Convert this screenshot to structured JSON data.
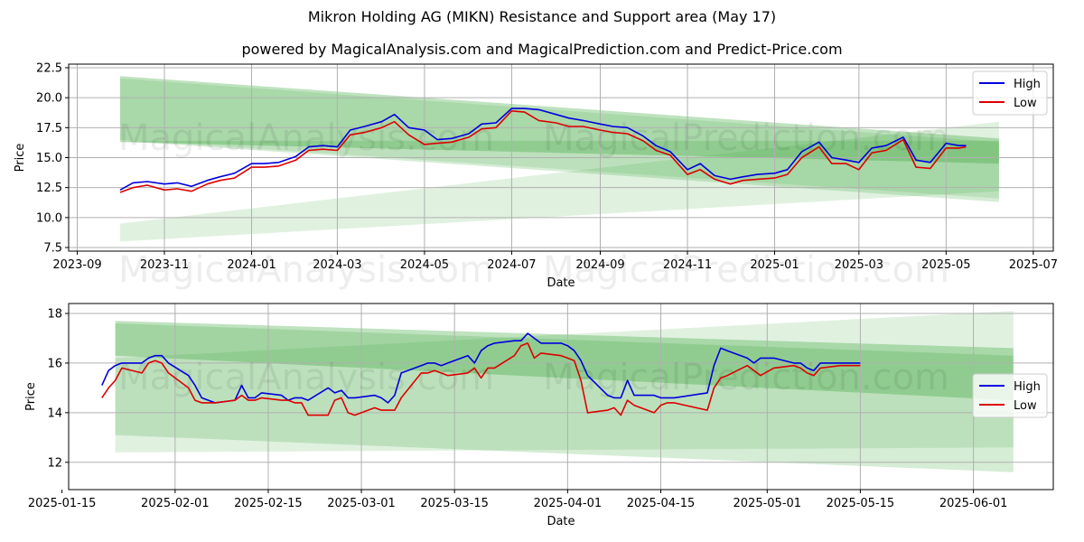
{
  "title": "Mikron Holding AG (MIKN) Resistance and Support area (May 17)",
  "subtitle": "powered by MagicalAnalysis.com and MagicalPrediction.com and Predict-Price.com",
  "watermarks": [
    "MagicalAnalysis.com",
    "MagicalPrediction.com"
  ],
  "colors": {
    "high": "#0000dd",
    "low": "#dd0000",
    "band": "#2ca02c",
    "grid": "#b0b0b0"
  },
  "chart_data": [
    {
      "type": "line",
      "xlabel": "Date",
      "ylabel": "Price",
      "grid": true,
      "legend_position": "top-right",
      "xlim": [
        "2023-08-26",
        "2025-07-15"
      ],
      "ylim": [
        7.2,
        22.8
      ],
      "x_ticks": [
        "2023-09",
        "2023-11",
        "2024-01",
        "2024-03",
        "2024-05",
        "2024-07",
        "2024-09",
        "2024-11",
        "2025-01",
        "2025-03",
        "2025-05",
        "2025-07"
      ],
      "y_ticks": [
        "7.5",
        "10.0",
        "12.5",
        "15.0",
        "17.5",
        "20.0",
        "22.5"
      ],
      "bands": [
        {
          "x": [
            "2023-10-01",
            "2025-06-07"
          ],
          "upper": [
            21.8,
            16.6
          ],
          "lower": [
            16.3,
            14.5
          ],
          "opacity": 0.3
        },
        {
          "x": [
            "2023-10-01",
            "2025-06-07"
          ],
          "upper": [
            21.6,
            16.3
          ],
          "lower": [
            16.5,
            11.6
          ],
          "opacity": 0.15
        },
        {
          "x": [
            "2023-10-01",
            "2025-06-07"
          ],
          "upper": [
            9.5,
            18.0
          ],
          "lower": [
            8.0,
            12.2
          ],
          "opacity": 0.15
        },
        {
          "x": [
            "2023-10-01",
            "2025-06-07"
          ],
          "upper": [
            16.4,
            16.4
          ],
          "lower": [
            16.4,
            11.3
          ],
          "opacity": 0.2
        }
      ],
      "series": [
        {
          "name": "High",
          "x": [
            "2023-10-01",
            "2023-10-10",
            "2023-10-20",
            "2023-11-01",
            "2023-11-10",
            "2023-11-20",
            "2023-12-01",
            "2023-12-10",
            "2023-12-20",
            "2024-01-01",
            "2024-01-10",
            "2024-01-20",
            "2024-02-01",
            "2024-02-10",
            "2024-02-20",
            "2024-03-01",
            "2024-03-10",
            "2024-03-20",
            "2024-04-01",
            "2024-04-10",
            "2024-04-20",
            "2024-05-01",
            "2024-05-10",
            "2024-05-20",
            "2024-06-01",
            "2024-06-10",
            "2024-06-20",
            "2024-07-01",
            "2024-07-10",
            "2024-07-20",
            "2024-08-01",
            "2024-08-10",
            "2024-08-20",
            "2024-09-01",
            "2024-09-10",
            "2024-09-20",
            "2024-10-01",
            "2024-10-10",
            "2024-10-20",
            "2024-11-01",
            "2024-11-10",
            "2024-11-20",
            "2024-12-01",
            "2024-12-10",
            "2024-12-20",
            "2025-01-01",
            "2025-01-10",
            "2025-01-20",
            "2025-02-01",
            "2025-02-10",
            "2025-02-20",
            "2025-03-01",
            "2025-03-10",
            "2025-03-20",
            "2025-04-01",
            "2025-04-10",
            "2025-04-20",
            "2025-05-01",
            "2025-05-10",
            "2025-05-15"
          ],
          "values": [
            12.3,
            12.9,
            13.0,
            12.8,
            12.9,
            12.6,
            13.1,
            13.4,
            13.7,
            14.5,
            14.5,
            14.6,
            15.1,
            15.9,
            16.0,
            15.9,
            17.3,
            17.6,
            18.0,
            18.6,
            17.5,
            17.3,
            16.5,
            16.6,
            17.0,
            17.8,
            17.9,
            19.1,
            19.1,
            19.0,
            18.6,
            18.3,
            18.1,
            17.8,
            17.6,
            17.5,
            16.8,
            16.0,
            15.5,
            14.0,
            14.5,
            13.5,
            13.2,
            13.4,
            13.6,
            13.7,
            14.0,
            15.5,
            16.3,
            15.0,
            14.8,
            14.6,
            15.8,
            16.0,
            16.7,
            14.8,
            14.6,
            16.2,
            16.0,
            16.0
          ]
        },
        {
          "name": "Low",
          "x": [
            "2023-10-01",
            "2023-10-10",
            "2023-10-20",
            "2023-11-01",
            "2023-11-10",
            "2023-11-20",
            "2023-12-01",
            "2023-12-10",
            "2023-12-20",
            "2024-01-01",
            "2024-01-10",
            "2024-01-20",
            "2024-02-01",
            "2024-02-10",
            "2024-02-20",
            "2024-03-01",
            "2024-03-10",
            "2024-03-20",
            "2024-04-01",
            "2024-04-10",
            "2024-04-20",
            "2024-05-01",
            "2024-05-10",
            "2024-05-20",
            "2024-06-01",
            "2024-06-10",
            "2024-06-20",
            "2024-07-01",
            "2024-07-10",
            "2024-07-20",
            "2024-08-01",
            "2024-08-10",
            "2024-08-20",
            "2024-09-01",
            "2024-09-10",
            "2024-09-20",
            "2024-10-01",
            "2024-10-10",
            "2024-10-20",
            "2024-11-01",
            "2024-11-10",
            "2024-11-20",
            "2024-12-01",
            "2024-12-10",
            "2024-12-20",
            "2025-01-01",
            "2025-01-10",
            "2025-01-20",
            "2025-02-01",
            "2025-02-10",
            "2025-02-20",
            "2025-03-01",
            "2025-03-10",
            "2025-03-20",
            "2025-04-01",
            "2025-04-10",
            "2025-04-20",
            "2025-05-01",
            "2025-05-10",
            "2025-05-15"
          ],
          "values": [
            12.1,
            12.5,
            12.7,
            12.3,
            12.4,
            12.2,
            12.8,
            13.1,
            13.3,
            14.2,
            14.2,
            14.3,
            14.8,
            15.6,
            15.7,
            15.6,
            16.9,
            17.1,
            17.5,
            18.0,
            16.9,
            16.1,
            16.2,
            16.3,
            16.7,
            17.4,
            17.5,
            18.9,
            18.8,
            18.1,
            17.9,
            17.6,
            17.6,
            17.3,
            17.1,
            17.0,
            16.4,
            15.6,
            15.2,
            13.6,
            14.0,
            13.2,
            12.8,
            13.1,
            13.2,
            13.3,
            13.6,
            15.0,
            15.9,
            14.5,
            14.5,
            14.0,
            15.4,
            15.6,
            16.5,
            14.2,
            14.1,
            15.8,
            15.8,
            15.9
          ]
        }
      ]
    },
    {
      "type": "line",
      "xlabel": "Date",
      "ylabel": "Price",
      "grid": true,
      "legend_position": "center-right",
      "xlim": [
        "2025-01-16",
        "2025-06-13"
      ],
      "ylim": [
        10.9,
        18.4
      ],
      "x_ticks": [
        "2025-01-15",
        "2025-02-01",
        "2025-02-15",
        "2025-03-01",
        "2025-03-15",
        "2025-04-01",
        "2025-04-15",
        "2025-05-01",
        "2025-05-15",
        "2025-06-01"
      ],
      "y_ticks": [
        "12",
        "14",
        "16",
        "18"
      ],
      "bands": [
        {
          "x": [
            "2025-01-23",
            "2025-06-07"
          ],
          "upper": [
            17.7,
            16.6
          ],
          "lower": [
            16.3,
            14.5
          ],
          "opacity": 0.3
        },
        {
          "x": [
            "2025-01-23",
            "2025-06-07"
          ],
          "upper": [
            17.6,
            16.3
          ],
          "lower": [
            13.1,
            11.6
          ],
          "opacity": 0.2
        },
        {
          "x": [
            "2025-01-23",
            "2025-06-07"
          ],
          "upper": [
            16.2,
            18.1
          ],
          "lower": [
            12.4,
            12.6
          ],
          "opacity": 0.15
        }
      ],
      "series": [
        {
          "name": "High",
          "x": [
            "2025-01-21",
            "2025-01-22",
            "2025-01-23",
            "2025-01-24",
            "2025-01-27",
            "2025-01-28",
            "2025-01-29",
            "2025-01-30",
            "2025-01-31",
            "2025-02-03",
            "2025-02-04",
            "2025-02-05",
            "2025-02-06",
            "2025-02-07",
            "2025-02-10",
            "2025-02-11",
            "2025-02-12",
            "2025-02-13",
            "2025-02-14",
            "2025-02-17",
            "2025-02-18",
            "2025-02-19",
            "2025-02-20",
            "2025-02-21",
            "2025-02-24",
            "2025-02-25",
            "2025-02-26",
            "2025-02-27",
            "2025-02-28",
            "2025-03-03",
            "2025-03-04",
            "2025-03-05",
            "2025-03-06",
            "2025-03-07",
            "2025-03-10",
            "2025-03-11",
            "2025-03-12",
            "2025-03-13",
            "2025-03-14",
            "2025-03-17",
            "2025-03-18",
            "2025-03-19",
            "2025-03-20",
            "2025-03-21",
            "2025-03-24",
            "2025-03-25",
            "2025-03-26",
            "2025-03-27",
            "2025-03-28",
            "2025-03-31",
            "2025-04-01",
            "2025-04-02",
            "2025-04-03",
            "2025-04-04",
            "2025-04-07",
            "2025-04-08",
            "2025-04-09",
            "2025-04-10",
            "2025-04-11",
            "2025-04-14",
            "2025-04-15",
            "2025-04-16",
            "2025-04-17",
            "2025-04-22",
            "2025-04-23",
            "2025-04-24",
            "2025-04-25",
            "2025-04-28",
            "2025-04-29",
            "2025-04-30",
            "2025-05-02",
            "2025-05-05",
            "2025-05-06",
            "2025-05-07",
            "2025-05-08",
            "2025-05-09",
            "2025-05-12",
            "2025-05-13",
            "2025-05-14",
            "2025-05-15"
          ],
          "values": [
            15.1,
            15.7,
            15.9,
            16.0,
            16.0,
            16.2,
            16.3,
            16.3,
            16.0,
            15.5,
            15.1,
            14.6,
            14.5,
            14.4,
            14.5,
            15.1,
            14.6,
            14.6,
            14.8,
            14.7,
            14.5,
            14.6,
            14.6,
            14.5,
            15.0,
            14.8,
            14.9,
            14.6,
            14.6,
            14.7,
            14.6,
            14.4,
            14.7,
            15.6,
            15.9,
            16.0,
            16.0,
            15.9,
            16.0,
            16.3,
            16.0,
            16.5,
            16.7,
            16.8,
            16.9,
            16.9,
            17.2,
            17.0,
            16.8,
            16.8,
            16.7,
            16.5,
            16.1,
            15.5,
            14.7,
            14.6,
            14.6,
            15.3,
            14.7,
            14.7,
            14.6,
            14.6,
            14.6,
            14.8,
            15.9,
            16.6,
            16.5,
            16.2,
            16.0,
            16.2,
            16.2,
            16.0,
            16.0,
            15.8,
            15.7,
            16.0,
            16.0,
            16.0,
            16.0,
            16.0
          ]
        },
        {
          "name": "Low",
          "x": [
            "2025-01-21",
            "2025-01-22",
            "2025-01-23",
            "2025-01-24",
            "2025-01-27",
            "2025-01-28",
            "2025-01-29",
            "2025-01-30",
            "2025-01-31",
            "2025-02-03",
            "2025-02-04",
            "2025-02-05",
            "2025-02-06",
            "2025-02-07",
            "2025-02-10",
            "2025-02-11",
            "2025-02-12",
            "2025-02-13",
            "2025-02-14",
            "2025-02-17",
            "2025-02-18",
            "2025-02-19",
            "2025-02-20",
            "2025-02-21",
            "2025-02-24",
            "2025-02-25",
            "2025-02-26",
            "2025-02-27",
            "2025-02-28",
            "2025-03-03",
            "2025-03-04",
            "2025-03-05",
            "2025-03-06",
            "2025-03-07",
            "2025-03-10",
            "2025-03-11",
            "2025-03-12",
            "2025-03-13",
            "2025-03-14",
            "2025-03-17",
            "2025-03-18",
            "2025-03-19",
            "2025-03-20",
            "2025-03-21",
            "2025-03-24",
            "2025-03-25",
            "2025-03-26",
            "2025-03-27",
            "2025-03-28",
            "2025-03-31",
            "2025-04-01",
            "2025-04-02",
            "2025-04-03",
            "2025-04-04",
            "2025-04-07",
            "2025-04-08",
            "2025-04-09",
            "2025-04-10",
            "2025-04-11",
            "2025-04-14",
            "2025-04-15",
            "2025-04-16",
            "2025-04-17",
            "2025-04-22",
            "2025-04-23",
            "2025-04-24",
            "2025-04-25",
            "2025-04-28",
            "2025-04-29",
            "2025-04-30",
            "2025-05-02",
            "2025-05-05",
            "2025-05-06",
            "2025-05-07",
            "2025-05-08",
            "2025-05-09",
            "2025-05-12",
            "2025-05-13",
            "2025-05-14",
            "2025-05-15"
          ],
          "values": [
            14.6,
            15.0,
            15.3,
            15.8,
            15.6,
            16.0,
            16.1,
            16.0,
            15.6,
            15.0,
            14.5,
            14.4,
            14.4,
            14.4,
            14.5,
            14.7,
            14.5,
            14.5,
            14.6,
            14.5,
            14.5,
            14.4,
            14.4,
            13.9,
            13.9,
            14.5,
            14.6,
            14.0,
            13.9,
            14.2,
            14.1,
            14.1,
            14.1,
            14.6,
            15.6,
            15.6,
            15.7,
            15.6,
            15.5,
            15.6,
            15.8,
            15.4,
            15.8,
            15.8,
            16.3,
            16.7,
            16.8,
            16.2,
            16.4,
            16.3,
            16.2,
            16.1,
            15.3,
            14.0,
            14.1,
            14.2,
            13.9,
            14.5,
            14.3,
            14.0,
            14.3,
            14.4,
            14.4,
            14.1,
            15.0,
            15.4,
            15.5,
            15.9,
            15.7,
            15.5,
            15.8,
            15.9,
            15.8,
            15.6,
            15.5,
            15.8,
            15.9,
            15.9,
            15.9,
            15.9
          ]
        }
      ]
    }
  ]
}
